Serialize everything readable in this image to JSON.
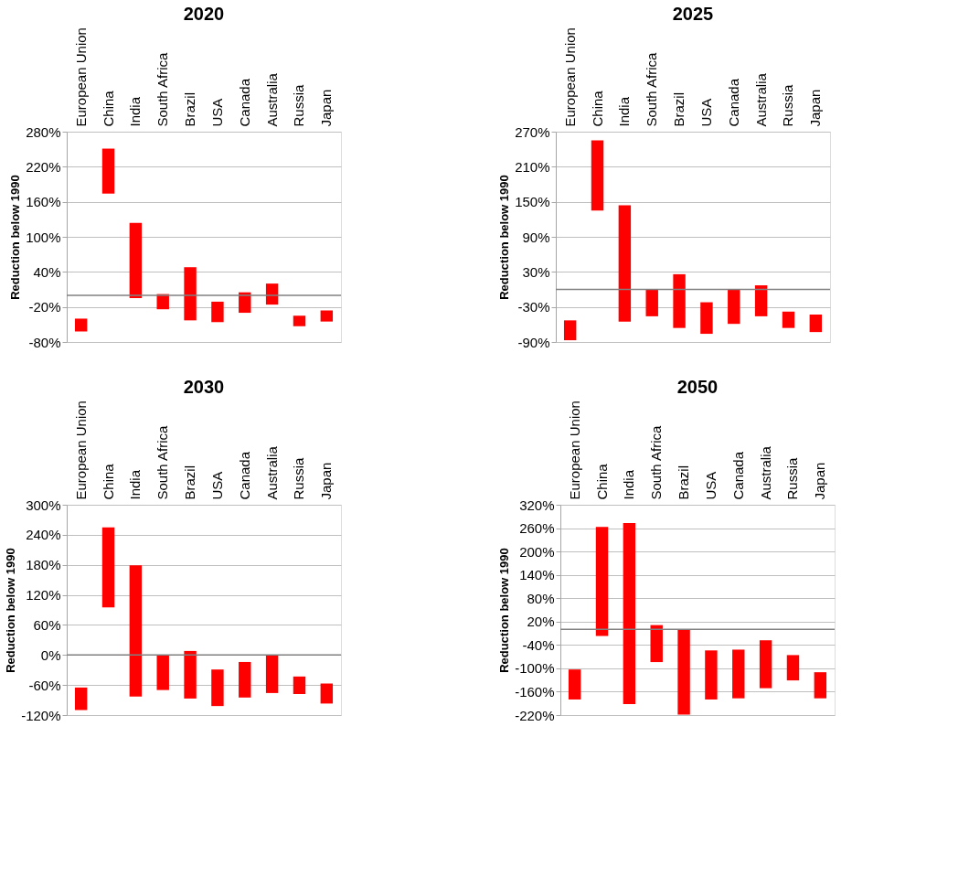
{
  "chart_data": [
    {
      "type": "bar",
      "title": "2020",
      "ylabel": "Reduction below 1990",
      "grid": "y",
      "categories": [
        "European Union",
        "China",
        "India",
        "South Africa",
        "Brazil",
        "USA",
        "Canada",
        "Australia",
        "Russia",
        "Japan"
      ],
      "base": [
        -62,
        174,
        -5,
        -24,
        -43,
        -46,
        -30,
        -16,
        -53,
        -45
      ],
      "values": [
        22,
        77,
        129,
        26,
        91,
        35,
        35,
        36,
        18,
        19
      ],
      "color": "#ff0000",
      "ylim": [
        -80,
        280
      ],
      "yticks": [
        {
          "value": -80,
          "label": "-80%"
        },
        {
          "value": -20,
          "label": "-20%"
        },
        {
          "value": 40,
          "label": "40%"
        },
        {
          "value": 100,
          "label": "100%"
        },
        {
          "value": 160,
          "label": "160%"
        },
        {
          "value": 220,
          "label": "220%"
        },
        {
          "value": 280,
          "label": "280%"
        }
      ],
      "ref_lines": [
        {
          "axis": "y",
          "value": 0,
          "color": "#808080"
        }
      ]
    },
    {
      "type": "bar",
      "title": "2025",
      "ylabel": "Reduction below 1990",
      "grid": "y",
      "categories": [
        "European Union",
        "China",
        "India",
        "South Africa",
        "Brazil",
        "USA",
        "Canada",
        "Australia",
        "Russia",
        "Japan"
      ],
      "base": [
        -87,
        135,
        -55,
        -46,
        -66,
        -76,
        -59,
        -46,
        -66,
        -73
      ],
      "values": [
        34,
        120,
        199,
        46,
        92,
        54,
        59,
        53,
        28,
        30
      ],
      "color": "#ff0000",
      "ylim": [
        -90,
        270
      ],
      "yticks": [
        {
          "value": -90,
          "label": "-90%"
        },
        {
          "value": -30,
          "label": "-30%"
        },
        {
          "value": 30,
          "label": "30%"
        },
        {
          "value": 90,
          "label": "90%"
        },
        {
          "value": 150,
          "label": "150%"
        },
        {
          "value": 210,
          "label": "210%"
        },
        {
          "value": 270,
          "label": "270%"
        }
      ],
      "ref_lines": [
        {
          "axis": "y",
          "value": 0,
          "color": "#808080"
        }
      ]
    },
    {
      "type": "bar",
      "title": "2030",
      "ylabel": "Reduction below 1990",
      "grid": "y",
      "categories": [
        "European Union",
        "China",
        "India",
        "South Africa",
        "Brazil",
        "USA",
        "Canada",
        "Australia",
        "Russia",
        "Japan"
      ],
      "base": [
        -110,
        95,
        -83,
        -70,
        -87,
        -102,
        -85,
        -76,
        -78,
        -97
      ],
      "values": [
        45,
        160,
        262,
        70,
        95,
        73,
        71,
        76,
        35,
        40
      ],
      "color": "#ff0000",
      "ylim": [
        -120,
        300
      ],
      "yticks": [
        {
          "value": -120,
          "label": "-120%"
        },
        {
          "value": -60,
          "label": "-60%"
        },
        {
          "value": 0,
          "label": "0%"
        },
        {
          "value": 60,
          "label": "60%"
        },
        {
          "value": 120,
          "label": "120%"
        },
        {
          "value": 180,
          "label": "180%"
        },
        {
          "value": 240,
          "label": "240%"
        },
        {
          "value": 300,
          "label": "300%"
        }
      ],
      "ref_lines": [
        {
          "axis": "y",
          "value": 0,
          "color": "#808080"
        }
      ]
    },
    {
      "type": "bar",
      "title": "2050",
      "ylabel": "Reduction below 1990",
      "grid": "y",
      "categories": [
        "European Union",
        "China",
        "India",
        "South Africa",
        "Brazil",
        "USA",
        "Canada",
        "Australia",
        "Russia",
        "Japan"
      ],
      "base": [
        -180,
        -17,
        -192,
        -84,
        -219,
        -180,
        -177,
        -151,
        -131,
        -177
      ],
      "values": [
        77,
        280,
        465,
        95,
        219,
        126,
        125,
        123,
        65,
        67
      ],
      "color": "#ff0000",
      "ylim": [
        -220,
        320
      ],
      "yticks": [
        {
          "value": -220,
          "label": "-220%"
        },
        {
          "value": -160,
          "label": "-160%"
        },
        {
          "value": -100,
          "label": "-100%"
        },
        {
          "value": -40,
          "label": "-40%"
        },
        {
          "value": 20,
          "label": "20%"
        },
        {
          "value": 80,
          "label": "80%"
        },
        {
          "value": 140,
          "label": "140%"
        },
        {
          "value": 200,
          "label": "200%"
        },
        {
          "value": 260,
          "label": "260%"
        },
        {
          "value": 320,
          "label": "320%"
        }
      ],
      "ref_lines": [
        {
          "axis": "y",
          "value": 0,
          "color": "#808080"
        }
      ]
    }
  ]
}
